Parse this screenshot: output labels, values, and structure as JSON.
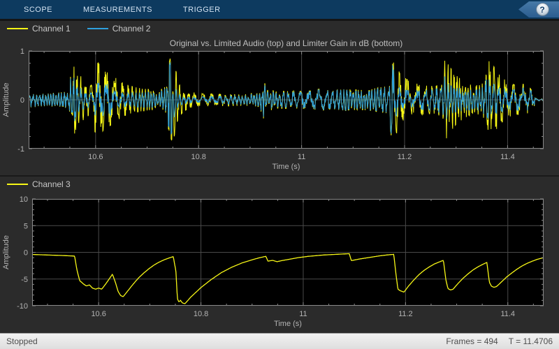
{
  "toolbar": {
    "tabs": [
      {
        "label": "SCOPE"
      },
      {
        "label": "MEASUREMENTS"
      },
      {
        "label": "TRIGGER"
      }
    ],
    "help_glyph": "?"
  },
  "statusbar": {
    "status": "Stopped",
    "frames": "Frames = 494",
    "time": "T = 11.4706"
  },
  "colors": {
    "toolbar_bg": "#0d3a5f",
    "toolbar_text": "#d3e2f1",
    "figure_bg": "#2b2b2b",
    "axes_bg": "#000000",
    "grid": "#4a4a4a",
    "frame": "#8a8a8a",
    "tick_label": "#b4b4b4",
    "title_text": "#bfbfbf",
    "channel1": "#f7f716",
    "channel2": "#2fa1de",
    "channel3": "#f7f716",
    "help_text": "#123f6b"
  },
  "chart_data": [
    {
      "type": "line",
      "title": "Original vs. Limited Audio (top) and Limiter Gain in dB (bottom)",
      "xlabel": "Time (s)",
      "ylabel": "Amplitude",
      "xlim": [
        10.47,
        11.47
      ],
      "ylim": [
        -1,
        1
      ],
      "xticks": [
        10.6,
        10.8,
        11.0,
        11.2,
        11.4
      ],
      "xtick_labels": [
        "10.6",
        "10.8",
        "11",
        "11.2",
        "11.4"
      ],
      "yticks": [
        -1,
        0,
        1
      ],
      "ytick_labels": [
        "-1",
        "0",
        "1"
      ],
      "x_minor_step": 0.05,
      "y_minor_step": 0.25,
      "grid": true,
      "legend_position": "top-left",
      "series": [
        {
          "name": "Channel 1",
          "color": "#f7f716",
          "kind": "audio-waveform",
          "description": "original audio, peak envelope vs time",
          "envelope": [
            [
              10.47,
              0.16
            ],
            [
              10.5,
              0.13
            ],
            [
              10.53,
              0.15
            ],
            [
              10.548,
              0.17
            ],
            [
              10.555,
              0.8
            ],
            [
              10.562,
              0.62
            ],
            [
              10.57,
              0.5
            ],
            [
              10.58,
              0.36
            ],
            [
              10.592,
              0.3
            ],
            [
              10.6,
              0.72
            ],
            [
              10.607,
              0.78
            ],
            [
              10.615,
              0.62
            ],
            [
              10.625,
              0.55
            ],
            [
              10.635,
              0.48
            ],
            [
              10.645,
              0.4
            ],
            [
              10.655,
              0.34
            ],
            [
              10.668,
              0.28
            ],
            [
              10.685,
              0.24
            ],
            [
              10.705,
              0.21
            ],
            [
              10.725,
              0.22
            ],
            [
              10.738,
              0.3
            ],
            [
              10.744,
              0.85
            ],
            [
              10.752,
              0.78
            ],
            [
              10.76,
              0.4
            ],
            [
              10.77,
              0.25
            ],
            [
              10.785,
              0.16
            ],
            [
              10.81,
              0.12
            ],
            [
              10.85,
              0.13
            ],
            [
              10.89,
              0.12
            ],
            [
              10.918,
              0.14
            ],
            [
              10.926,
              0.38
            ],
            [
              10.935,
              0.24
            ],
            [
              10.95,
              0.17
            ],
            [
              10.98,
              0.18
            ],
            [
              11.01,
              0.17
            ],
            [
              11.035,
              0.22
            ],
            [
              11.06,
              0.19
            ],
            [
              11.085,
              0.22
            ],
            [
              11.115,
              0.2
            ],
            [
              11.145,
              0.24
            ],
            [
              11.168,
              0.28
            ],
            [
              11.175,
              0.8
            ],
            [
              11.183,
              0.72
            ],
            [
              11.192,
              0.52
            ],
            [
              11.205,
              0.42
            ],
            [
              11.22,
              0.34
            ],
            [
              11.24,
              0.29
            ],
            [
              11.26,
              0.28
            ],
            [
              11.272,
              0.35
            ],
            [
              11.278,
              0.85
            ],
            [
              11.287,
              0.68
            ],
            [
              11.3,
              0.5
            ],
            [
              11.315,
              0.38
            ],
            [
              11.33,
              0.3
            ],
            [
              11.348,
              0.3
            ],
            [
              11.356,
              0.4
            ],
            [
              11.363,
              0.8
            ],
            [
              11.372,
              0.7
            ],
            [
              11.385,
              0.5
            ],
            [
              11.4,
              0.36
            ],
            [
              11.415,
              0.3
            ],
            [
              11.43,
              0.32
            ],
            [
              11.442,
              0.26
            ],
            [
              11.452,
              0.14
            ],
            [
              11.456,
              0.02
            ],
            [
              11.47,
              0.02
            ]
          ]
        },
        {
          "name": "Channel 2",
          "color": "#2fa1de",
          "kind": "audio-waveform-limited",
          "description": "limited audio = Channel 1 scaled by limiter gain (Channel 3, dB)"
        }
      ]
    },
    {
      "type": "line",
      "title": "",
      "xlabel": "Time (s)",
      "ylabel": "Amplitude",
      "xlim": [
        10.47,
        11.47
      ],
      "ylim": [
        -10,
        10
      ],
      "xticks": [
        10.6,
        10.8,
        11.0,
        11.2,
        11.4
      ],
      "xtick_labels": [
        "10.6",
        "10.8",
        "11",
        "11.2",
        "11.4"
      ],
      "yticks": [
        -10,
        -5,
        0,
        5,
        10
      ],
      "ytick_labels": [
        "-10",
        "-5",
        "0",
        "5",
        "10"
      ],
      "x_minor_step": 0.05,
      "y_minor_step": 1,
      "grid": true,
      "legend_position": "top-left",
      "series": [
        {
          "name": "Channel 3",
          "color": "#f7f716",
          "kind": "gain-db-curve",
          "points": [
            [
              10.47,
              -0.4
            ],
            [
              10.5,
              -0.5
            ],
            [
              10.53,
              -0.6
            ],
            [
              10.553,
              -0.7
            ],
            [
              10.558,
              -3.5
            ],
            [
              10.563,
              -5.3
            ],
            [
              10.57,
              -5.9
            ],
            [
              10.576,
              -6.3
            ],
            [
              10.582,
              -6.1
            ],
            [
              10.588,
              -6.7
            ],
            [
              10.594,
              -6.9
            ],
            [
              10.6,
              -6.7
            ],
            [
              10.606,
              -6.9
            ],
            [
              10.614,
              -5.9
            ],
            [
              10.622,
              -4.8
            ],
            [
              10.627,
              -4.1
            ],
            [
              10.632,
              -5.4
            ],
            [
              10.638,
              -7.3
            ],
            [
              10.643,
              -8.1
            ],
            [
              10.648,
              -8.3
            ],
            [
              10.658,
              -7.1
            ],
            [
              10.668,
              -5.9
            ],
            [
              10.678,
              -4.8
            ],
            [
              10.688,
              -3.9
            ],
            [
              10.698,
              -3.1
            ],
            [
              10.708,
              -2.4
            ],
            [
              10.718,
              -1.85
            ],
            [
              10.728,
              -1.4
            ],
            [
              10.738,
              -1.05
            ],
            [
              10.746,
              -0.8
            ],
            [
              10.751,
              -3.5
            ],
            [
              10.754,
              -8.7
            ],
            [
              10.757,
              -9.3
            ],
            [
              10.76,
              -9.0
            ],
            [
              10.764,
              -9.5
            ],
            [
              10.769,
              -9.6
            ],
            [
              10.78,
              -8.4
            ],
            [
              10.8,
              -6.6
            ],
            [
              10.82,
              -5.1
            ],
            [
              10.84,
              -3.8
            ],
            [
              10.86,
              -2.8
            ],
            [
              10.88,
              -2.0
            ],
            [
              10.9,
              -1.4
            ],
            [
              10.915,
              -1.0
            ],
            [
              10.927,
              -0.75
            ],
            [
              10.931,
              -1.65
            ],
            [
              10.94,
              -1.5
            ],
            [
              10.949,
              -1.75
            ],
            [
              10.958,
              -1.55
            ],
            [
              10.97,
              -1.35
            ],
            [
              10.99,
              -1.0
            ],
            [
              11.01,
              -0.75
            ],
            [
              11.04,
              -0.5
            ],
            [
              11.07,
              -0.35
            ],
            [
              11.09,
              -0.25
            ],
            [
              11.094,
              -1.55
            ],
            [
              11.11,
              -1.25
            ],
            [
              11.13,
              -0.95
            ],
            [
              11.15,
              -0.65
            ],
            [
              11.168,
              -0.45
            ],
            [
              11.177,
              -0.38
            ],
            [
              11.181,
              -3.8
            ],
            [
              11.185,
              -6.9
            ],
            [
              11.19,
              -7.2
            ],
            [
              11.197,
              -7.45
            ],
            [
              11.206,
              -6.3
            ],
            [
              11.216,
              -5.2
            ],
            [
              11.226,
              -4.2
            ],
            [
              11.236,
              -3.4
            ],
            [
              11.246,
              -2.75
            ],
            [
              11.256,
              -2.2
            ],
            [
              11.266,
              -1.8
            ],
            [
              11.274,
              -1.5
            ],
            [
              11.279,
              -5.2
            ],
            [
              11.283,
              -6.8
            ],
            [
              11.288,
              -7.05
            ],
            [
              11.293,
              -6.9
            ],
            [
              11.302,
              -5.9
            ],
            [
              11.312,
              -4.9
            ],
            [
              11.322,
              -4.05
            ],
            [
              11.332,
              -3.3
            ],
            [
              11.342,
              -2.7
            ],
            [
              11.352,
              -2.2
            ],
            [
              11.359,
              -1.9
            ],
            [
              11.364,
              -5.6
            ],
            [
              11.368,
              -6.35
            ],
            [
              11.373,
              -6.55
            ],
            [
              11.378,
              -6.4
            ],
            [
              11.388,
              -5.5
            ],
            [
              11.398,
              -4.6
            ],
            [
              11.408,
              -3.85
            ],
            [
              11.418,
              -3.15
            ],
            [
              11.428,
              -2.55
            ],
            [
              11.438,
              -2.05
            ],
            [
              11.448,
              -1.65
            ],
            [
              11.458,
              -1.3
            ],
            [
              11.47,
              -1.0
            ]
          ]
        }
      ]
    }
  ]
}
